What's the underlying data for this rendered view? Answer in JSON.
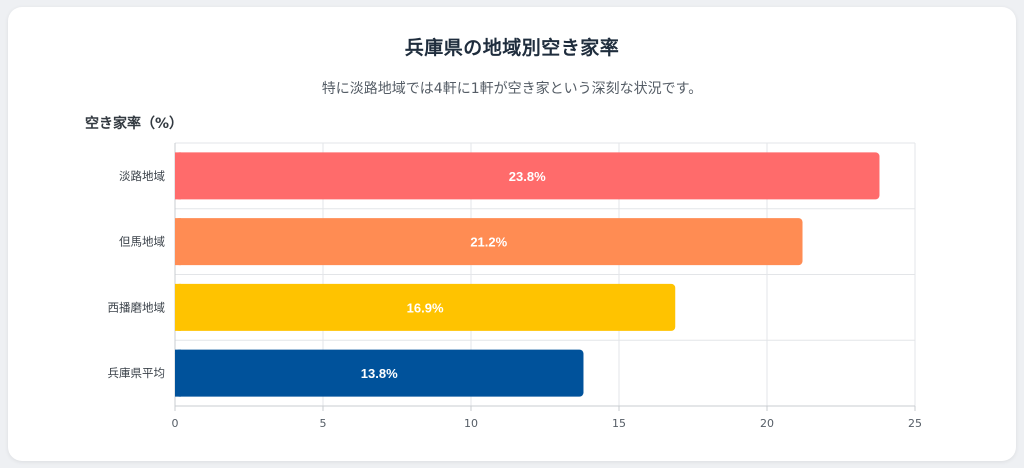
{
  "header": {
    "title": "兵庫県の地域別空き家率",
    "subtitle": "特に淡路地域では4軒に1軒が空き家という深刻な状況です。"
  },
  "chart_data": {
    "type": "bar",
    "orientation": "horizontal",
    "title": "兵庫県の地域別空き家率",
    "subtitle": "特に淡路地域では4軒に1軒が空き家という深刻な状況です。",
    "ylabel": "空き家率（%）",
    "xlabel": "",
    "categories": [
      "淡路地域",
      "但馬地域",
      "西播磨地域",
      "兵庫県平均"
    ],
    "values": [
      23.8,
      21.2,
      16.9,
      13.8
    ],
    "data_labels": [
      "23.8%",
      "21.2%",
      "16.9%",
      "13.8%"
    ],
    "colors": [
      "#ff6b6b",
      "#ff8c53",
      "#ffc300",
      "#00529b"
    ],
    "xlim": [
      0,
      25
    ],
    "xticks": [
      0,
      5,
      10,
      15,
      20,
      25
    ],
    "xtick_labels": [
      "0",
      "5",
      "10",
      "15",
      "20",
      "25"
    ],
    "grid": true,
    "legend": "none"
  }
}
